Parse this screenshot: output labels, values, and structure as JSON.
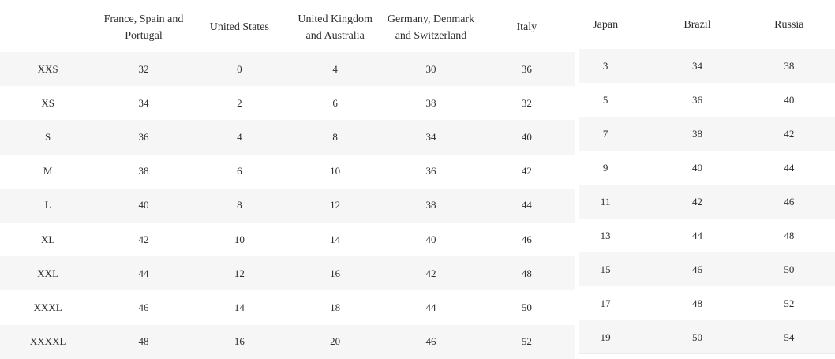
{
  "left_table": {
    "columns": [
      "",
      "France, Spain and\nPortugal",
      "United States",
      "United Kingdom\nand Australia",
      "Germany, Denmark\nand Switzerland",
      "Italy"
    ],
    "rows": [
      {
        "size": "XXS",
        "values": [
          "32",
          "0",
          "4",
          "30",
          "36"
        ]
      },
      {
        "size": "XS",
        "values": [
          "34",
          "2",
          "6",
          "38",
          "32"
        ]
      },
      {
        "size": "S",
        "values": [
          "36",
          "4",
          "8",
          "34",
          "40"
        ]
      },
      {
        "size": "M",
        "values": [
          "38",
          "6",
          "10",
          "36",
          "42"
        ]
      },
      {
        "size": "L",
        "values": [
          "40",
          "8",
          "12",
          "38",
          "44"
        ]
      },
      {
        "size": "XL",
        "values": [
          "42",
          "10",
          "14",
          "40",
          "46"
        ]
      },
      {
        "size": "XXL",
        "values": [
          "44",
          "12",
          "16",
          "42",
          "48"
        ]
      },
      {
        "size": "XXXL",
        "values": [
          "46",
          "14",
          "18",
          "44",
          "50"
        ]
      },
      {
        "size": "XXXXL",
        "values": [
          "48",
          "16",
          "20",
          "46",
          "52"
        ]
      }
    ]
  },
  "right_table": {
    "columns": [
      "Japan",
      "Brazil",
      "Russia"
    ],
    "rows": [
      [
        "3",
        "34",
        "38"
      ],
      [
        "5",
        "36",
        "40"
      ],
      [
        "7",
        "38",
        "42"
      ],
      [
        "9",
        "40",
        "44"
      ],
      [
        "11",
        "42",
        "46"
      ],
      [
        "13",
        "44",
        "48"
      ],
      [
        "15",
        "46",
        "50"
      ],
      [
        "17",
        "48",
        "52"
      ],
      [
        "19",
        "50",
        "54"
      ]
    ]
  },
  "colors": {
    "stripe": "#f6f6f6",
    "border_top": "#d8d8d8",
    "bottom_line": "#ececec",
    "text": "#2e2e2e"
  }
}
